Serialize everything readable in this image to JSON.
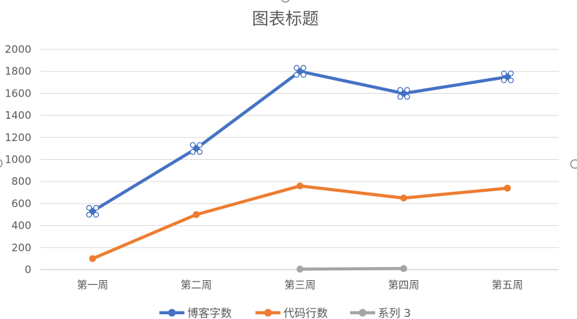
{
  "chart_data": {
    "type": "line",
    "title": "图表标题",
    "xlabel": "",
    "ylabel": "",
    "categories": [
      "第一周",
      "第二周",
      "第三周",
      "第四周",
      "第五周"
    ],
    "ylim": [
      0,
      2000
    ],
    "yticks": [
      0,
      200,
      400,
      600,
      800,
      1000,
      1200,
      1400,
      1600,
      1800,
      2000
    ],
    "grid": true,
    "legend_position": "bottom",
    "series": [
      {
        "name": "博客字数",
        "color": "#4472c4",
        "values": [
          530,
          1100,
          1800,
          1600,
          1750
        ],
        "selected": true
      },
      {
        "name": "代码行数",
        "color": "#ed7d31",
        "values": [
          100,
          500,
          760,
          650,
          740
        ]
      },
      {
        "name": "系列 3",
        "color": "#a5a5a5",
        "values": [
          null,
          null,
          5,
          10,
          null
        ]
      }
    ]
  }
}
